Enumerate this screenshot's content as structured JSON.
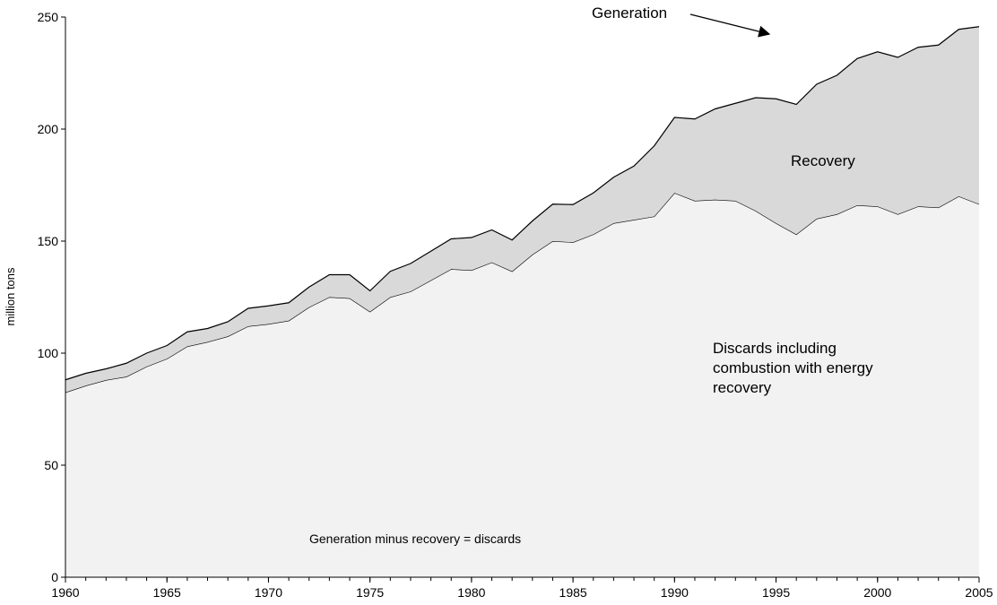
{
  "chart_data": {
    "type": "stacked-area",
    "ylabel": "million tons",
    "x": [
      1960,
      1961,
      1962,
      1963,
      1964,
      1965,
      1966,
      1967,
      1968,
      1969,
      1970,
      1971,
      1972,
      1973,
      1974,
      1975,
      1976,
      1977,
      1978,
      1979,
      1980,
      1981,
      1982,
      1983,
      1984,
      1985,
      1986,
      1987,
      1988,
      1989,
      1990,
      1991,
      1992,
      1993,
      1994,
      1995,
      1996,
      1997,
      1998,
      1999,
      2000,
      2001,
      2002,
      2003,
      2004,
      2005
    ],
    "series": [
      {
        "name": "Discards including combustion with energy recovery",
        "color": "#f2f2f2",
        "values": [
          82.5,
          85.5,
          88,
          89.5,
          94,
          97.5,
          103,
          105,
          107.5,
          112,
          113,
          114.5,
          120.5,
          125,
          124.5,
          118.5,
          125,
          127.5,
          132.5,
          137.5,
          137,
          140.5,
          136.5,
          144,
          150,
          149.5,
          153,
          158,
          159.5,
          161,
          171.5,
          168,
          168.5,
          168,
          163.5,
          158,
          153,
          160,
          162,
          166,
          165.5,
          162,
          165.5,
          165,
          170,
          166.5
        ]
      },
      {
        "name": "Recovery",
        "color": "#d9d9d9",
        "values": [
          5.6,
          5.5,
          5,
          6,
          6,
          5.9,
          6.5,
          6,
          6.5,
          8,
          8.1,
          8,
          9,
          10,
          10.5,
          9.3,
          11.5,
          12.5,
          13,
          13.5,
          14.6,
          14.5,
          14,
          15,
          16.5,
          16.8,
          18.5,
          20.5,
          24,
          31.5,
          33.7,
          36.5,
          40.5,
          43.5,
          50.5,
          55.5,
          58,
          60,
          62,
          65.5,
          69,
          70,
          71,
          72.5,
          74.5,
          79.2
        ]
      }
    ],
    "annotations": [
      "Generation",
      "Generation minus recovery = discards"
    ],
    "xlim": [
      1960,
      2005
    ],
    "xticks": [
      1960,
      1965,
      1970,
      1975,
      1980,
      1985,
      1990,
      1995,
      2000,
      2005
    ],
    "ylim": [
      0,
      250
    ],
    "yticks": [
      0,
      50,
      100,
      150,
      200,
      250
    ]
  }
}
